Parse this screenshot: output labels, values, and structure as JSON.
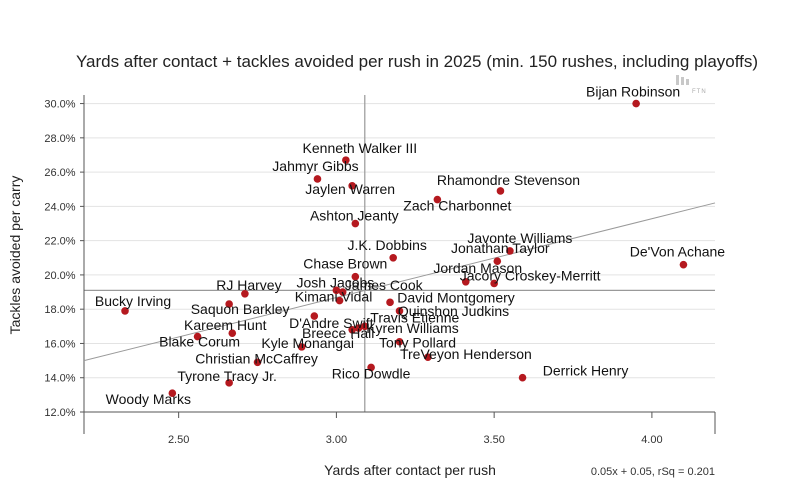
{
  "chart_data": {
    "type": "scatter",
    "title": "Yards after contact + tackles avoided per rush in 2025 (min. 150 rushes, including playoffs)",
    "xlabel": "Yards after contact per rush",
    "ylabel": "Tackles avoided per carry",
    "xlim": [
      2.2,
      4.2
    ],
    "ylim": [
      12.0,
      30.5
    ],
    "x_ticks": [
      2.5,
      3.0,
      3.5,
      4.0
    ],
    "x_tick_labels": [
      "2.50",
      "3.00",
      "3.50",
      "4.00"
    ],
    "y_ticks": [
      12,
      14,
      16,
      18,
      20,
      22,
      24,
      26,
      28,
      30
    ],
    "y_tick_labels": [
      "12.0%",
      "14.0%",
      "16.0%",
      "18.0%",
      "20.0%",
      "22.0%",
      "24.0%",
      "26.0%",
      "28.0%",
      "30.0%"
    ],
    "grid": true,
    "reference_lines": {
      "x": 3.09,
      "y": 19.1
    },
    "trendline": {
      "slope": 0.05,
      "intercept": 0.05,
      "label": "0.05x + 0.05, rSq = 0.201",
      "x_start": 2.2,
      "y_start": 15.0,
      "x_end": 4.2,
      "y_end": 24.2
    },
    "logo_text": "FTN",
    "points": [
      {
        "name": "Bijan Robinson",
        "x": 3.95,
        "y": 30.0,
        "lx": -3,
        "ly": -7,
        "anchor": "middle"
      },
      {
        "name": "Kenneth Walker III",
        "x": 3.03,
        "y": 26.7,
        "lx": 14,
        "ly": -7,
        "anchor": "middle"
      },
      {
        "name": "Jahmyr Gibbs",
        "x": 2.94,
        "y": 25.6,
        "lx": -2,
        "ly": -8,
        "anchor": "middle"
      },
      {
        "name": "Jaylen Warren",
        "x": 3.05,
        "y": 25.2,
        "lx": -2,
        "ly": 8,
        "anchor": "middle"
      },
      {
        "name": "Rhamondre Stevenson",
        "x": 3.52,
        "y": 24.9,
        "lx": 8,
        "ly": -6,
        "anchor": "middle"
      },
      {
        "name": "Zach Charbonnet",
        "x": 3.32,
        "y": 24.4,
        "lx": 20,
        "ly": 11,
        "anchor": "middle"
      },
      {
        "name": "Ashton Jeanty",
        "x": 3.06,
        "y": 23.0,
        "lx": -1,
        "ly": -3,
        "anchor": "middle"
      },
      {
        "name": "Javonte Williams",
        "x": 3.55,
        "y": 21.4,
        "lx": 10,
        "ly": -8,
        "anchor": "middle"
      },
      {
        "name": "J.K. Dobbins",
        "x": 3.18,
        "y": 21.0,
        "lx": -6,
        "ly": -8,
        "anchor": "middle"
      },
      {
        "name": "Jonathan Taylor",
        "x": 3.51,
        "y": 20.8,
        "lx": 3,
        "ly": -8,
        "anchor": "middle"
      },
      {
        "name": "De'Von Achane",
        "x": 4.1,
        "y": 20.6,
        "lx": -6,
        "ly": -8,
        "anchor": "middle"
      },
      {
        "name": "Chase Brown",
        "x": 3.06,
        "y": 19.9,
        "lx": -10,
        "ly": -8,
        "anchor": "middle"
      },
      {
        "name": "Jordan Mason",
        "x": 3.41,
        "y": 19.6,
        "lx": 12,
        "ly": -9,
        "anchor": "middle"
      },
      {
        "name": "Jacory Croskey-Merritt",
        "x": 3.5,
        "y": 19.5,
        "lx": 36,
        "ly": -3,
        "anchor": "middle"
      },
      {
        "name": "Josh Jacobs",
        "x": 3.0,
        "y": 19.1,
        "lx": -1,
        "ly": -3,
        "anchor": "middle"
      },
      {
        "name": "James Cook",
        "x": 3.02,
        "y": 19.0,
        "lx": 41,
        "ly": -2,
        "anchor": "middle"
      },
      {
        "name": "RJ Harvey",
        "x": 2.71,
        "y": 18.9,
        "lx": 4,
        "ly": -4,
        "anchor": "middle"
      },
      {
        "name": "Kimani Vidal",
        "x": 3.01,
        "y": 18.5,
        "lx": -6,
        "ly": 1,
        "anchor": "middle"
      },
      {
        "name": "David Montgomery",
        "x": 3.17,
        "y": 18.4,
        "lx": 66,
        "ly": 0,
        "anchor": "middle"
      },
      {
        "name": "Saquon Barkley",
        "x": 2.66,
        "y": 18.3,
        "lx": 11,
        "ly": 10,
        "anchor": "middle"
      },
      {
        "name": "Bucky Irving",
        "x": 2.33,
        "y": 17.9,
        "lx": 8,
        "ly": -5,
        "anchor": "middle"
      },
      {
        "name": "Quinshon Judkins",
        "x": 3.2,
        "y": 17.9,
        "lx": 54,
        "ly": 5,
        "anchor": "middle"
      },
      {
        "name": "D'Andre Swift",
        "x": 2.93,
        "y": 17.6,
        "lx": 17,
        "ly": 12,
        "anchor": "middle"
      },
      {
        "name": "Travis Etienne",
        "x": 3.09,
        "y": 17.0,
        "lx": 50,
        "ly": -4,
        "anchor": "middle"
      },
      {
        "name": "Kareem Hunt",
        "x": 2.67,
        "y": 16.6,
        "lx": -7,
        "ly": -3,
        "anchor": "middle"
      },
      {
        "name": "Breece Hall",
        "x": 3.05,
        "y": 16.8,
        "lx": -14,
        "ly": 8,
        "anchor": "middle"
      },
      {
        "name": "Kyren Williams",
        "x": 3.07,
        "y": 16.9,
        "lx": 54,
        "ly": 5,
        "anchor": "middle"
      },
      {
        "name": "Blake Corum",
        "x": 2.56,
        "y": 16.4,
        "lx": 2,
        "ly": 10,
        "anchor": "middle"
      },
      {
        "name": "Kyle Monangai",
        "x": 2.89,
        "y": 15.8,
        "lx": 6,
        "ly": 1,
        "anchor": "middle"
      },
      {
        "name": "Tony Pollard",
        "x": 3.2,
        "y": 16.1,
        "lx": 18,
        "ly": 6,
        "anchor": "middle"
      },
      {
        "name": "TreVeyon Henderson",
        "x": 3.29,
        "y": 15.2,
        "lx": 38,
        "ly": 2,
        "anchor": "middle"
      },
      {
        "name": "Christian McCaffrey",
        "x": 2.75,
        "y": 14.9,
        "lx": -1,
        "ly": 1,
        "anchor": "middle"
      },
      {
        "name": "Rico Dowdle",
        "x": 3.11,
        "y": 14.6,
        "lx": 0,
        "ly": 11,
        "anchor": "middle"
      },
      {
        "name": "Derrick Henry",
        "x": 3.59,
        "y": 14.0,
        "lx": 63,
        "ly": -2,
        "anchor": "middle"
      },
      {
        "name": "Tyrone Tracy Jr.",
        "x": 2.66,
        "y": 13.7,
        "lx": -2,
        "ly": -2,
        "anchor": "middle"
      },
      {
        "name": "Woody Marks",
        "x": 2.48,
        "y": 13.1,
        "lx": -24,
        "ly": 11,
        "anchor": "middle"
      }
    ]
  }
}
